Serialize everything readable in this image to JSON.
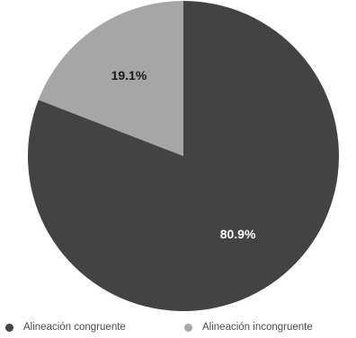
{
  "chart_data": {
    "type": "pie",
    "title": "",
    "slices": [
      {
        "label": "Alineación congruente",
        "value": 80.9,
        "display": "80.9%",
        "color": "#434343",
        "text_color": "#ffffff"
      },
      {
        "label": "Alineación incongruente",
        "value": 19.1,
        "display": "19.1%",
        "color": "#a6a6a6",
        "text_color": "#1a1a1a"
      }
    ],
    "start_angle_deg": 0,
    "direction": "clockwise",
    "legend_position": "bottom"
  }
}
